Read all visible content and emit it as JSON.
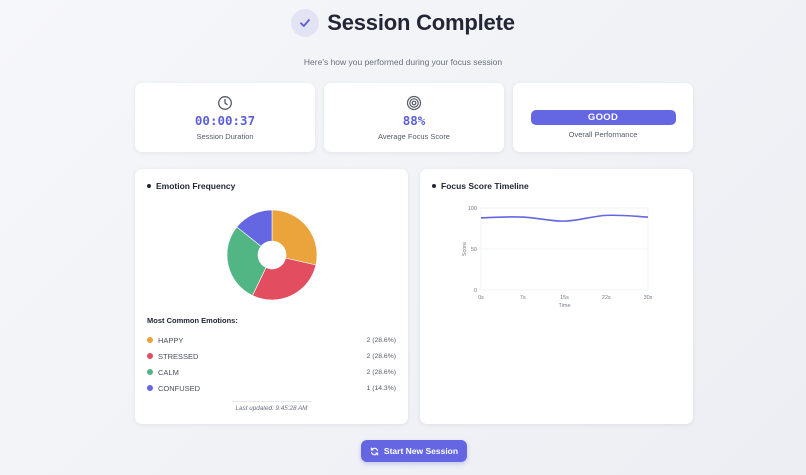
{
  "header": {
    "title": "Session Complete",
    "subtitle": "Here's how you performed during your focus session",
    "icon": "check-icon"
  },
  "stats": {
    "duration": {
      "icon": "clock-icon",
      "value": "00:00:37",
      "label": "Session Duration"
    },
    "focus": {
      "icon": "target-icon",
      "value": "88%",
      "label": "Average Focus Score"
    },
    "performance": {
      "badge": "GOOD",
      "label": "Overall Performance"
    }
  },
  "emotion_panel": {
    "title": "Emotion Frequency",
    "common_title": "Most Common Emotions:",
    "items": [
      {
        "name": "HAPPY",
        "count": "2 (28.6%)",
        "color": "#eba33c"
      },
      {
        "name": "STRESSED",
        "count": "2 (28.6%)",
        "color": "#e24d5f"
      },
      {
        "name": "CALM",
        "count": "2 (28.6%)",
        "color": "#52b584"
      },
      {
        "name": "CONFUSED",
        "count": "1 (14.3%)",
        "color": "#6466e2"
      }
    ],
    "last_updated": "Last updated: 9:45:28 AM"
  },
  "timeline_panel": {
    "title": "Focus Score Timeline"
  },
  "chart_data": [
    {
      "type": "pie",
      "title": "Emotion Frequency",
      "categories": [
        "HAPPY",
        "STRESSED",
        "CALM",
        "CONFUSED"
      ],
      "values": [
        2,
        2,
        2,
        1
      ],
      "colors": [
        "#eba33c",
        "#e24d5f",
        "#52b584",
        "#6466e2"
      ],
      "donut": true
    },
    {
      "type": "line",
      "title": "Focus Score Timeline",
      "x": [
        "0s",
        "7s",
        "15s",
        "22s",
        "30s"
      ],
      "series": [
        {
          "name": "Score",
          "values": [
            88,
            89,
            84,
            91,
            89
          ],
          "color": "#6466e2"
        }
      ],
      "xlabel": "Time",
      "ylabel": "Score",
      "yticks": [
        0,
        50,
        100
      ],
      "ylim": [
        0,
        100
      ],
      "grid": true
    }
  ],
  "actions": {
    "start_new_session": "Start New Session",
    "start_icon": "refresh-icon"
  },
  "colors": {
    "accent": "#6466e2",
    "title": "#232637"
  }
}
